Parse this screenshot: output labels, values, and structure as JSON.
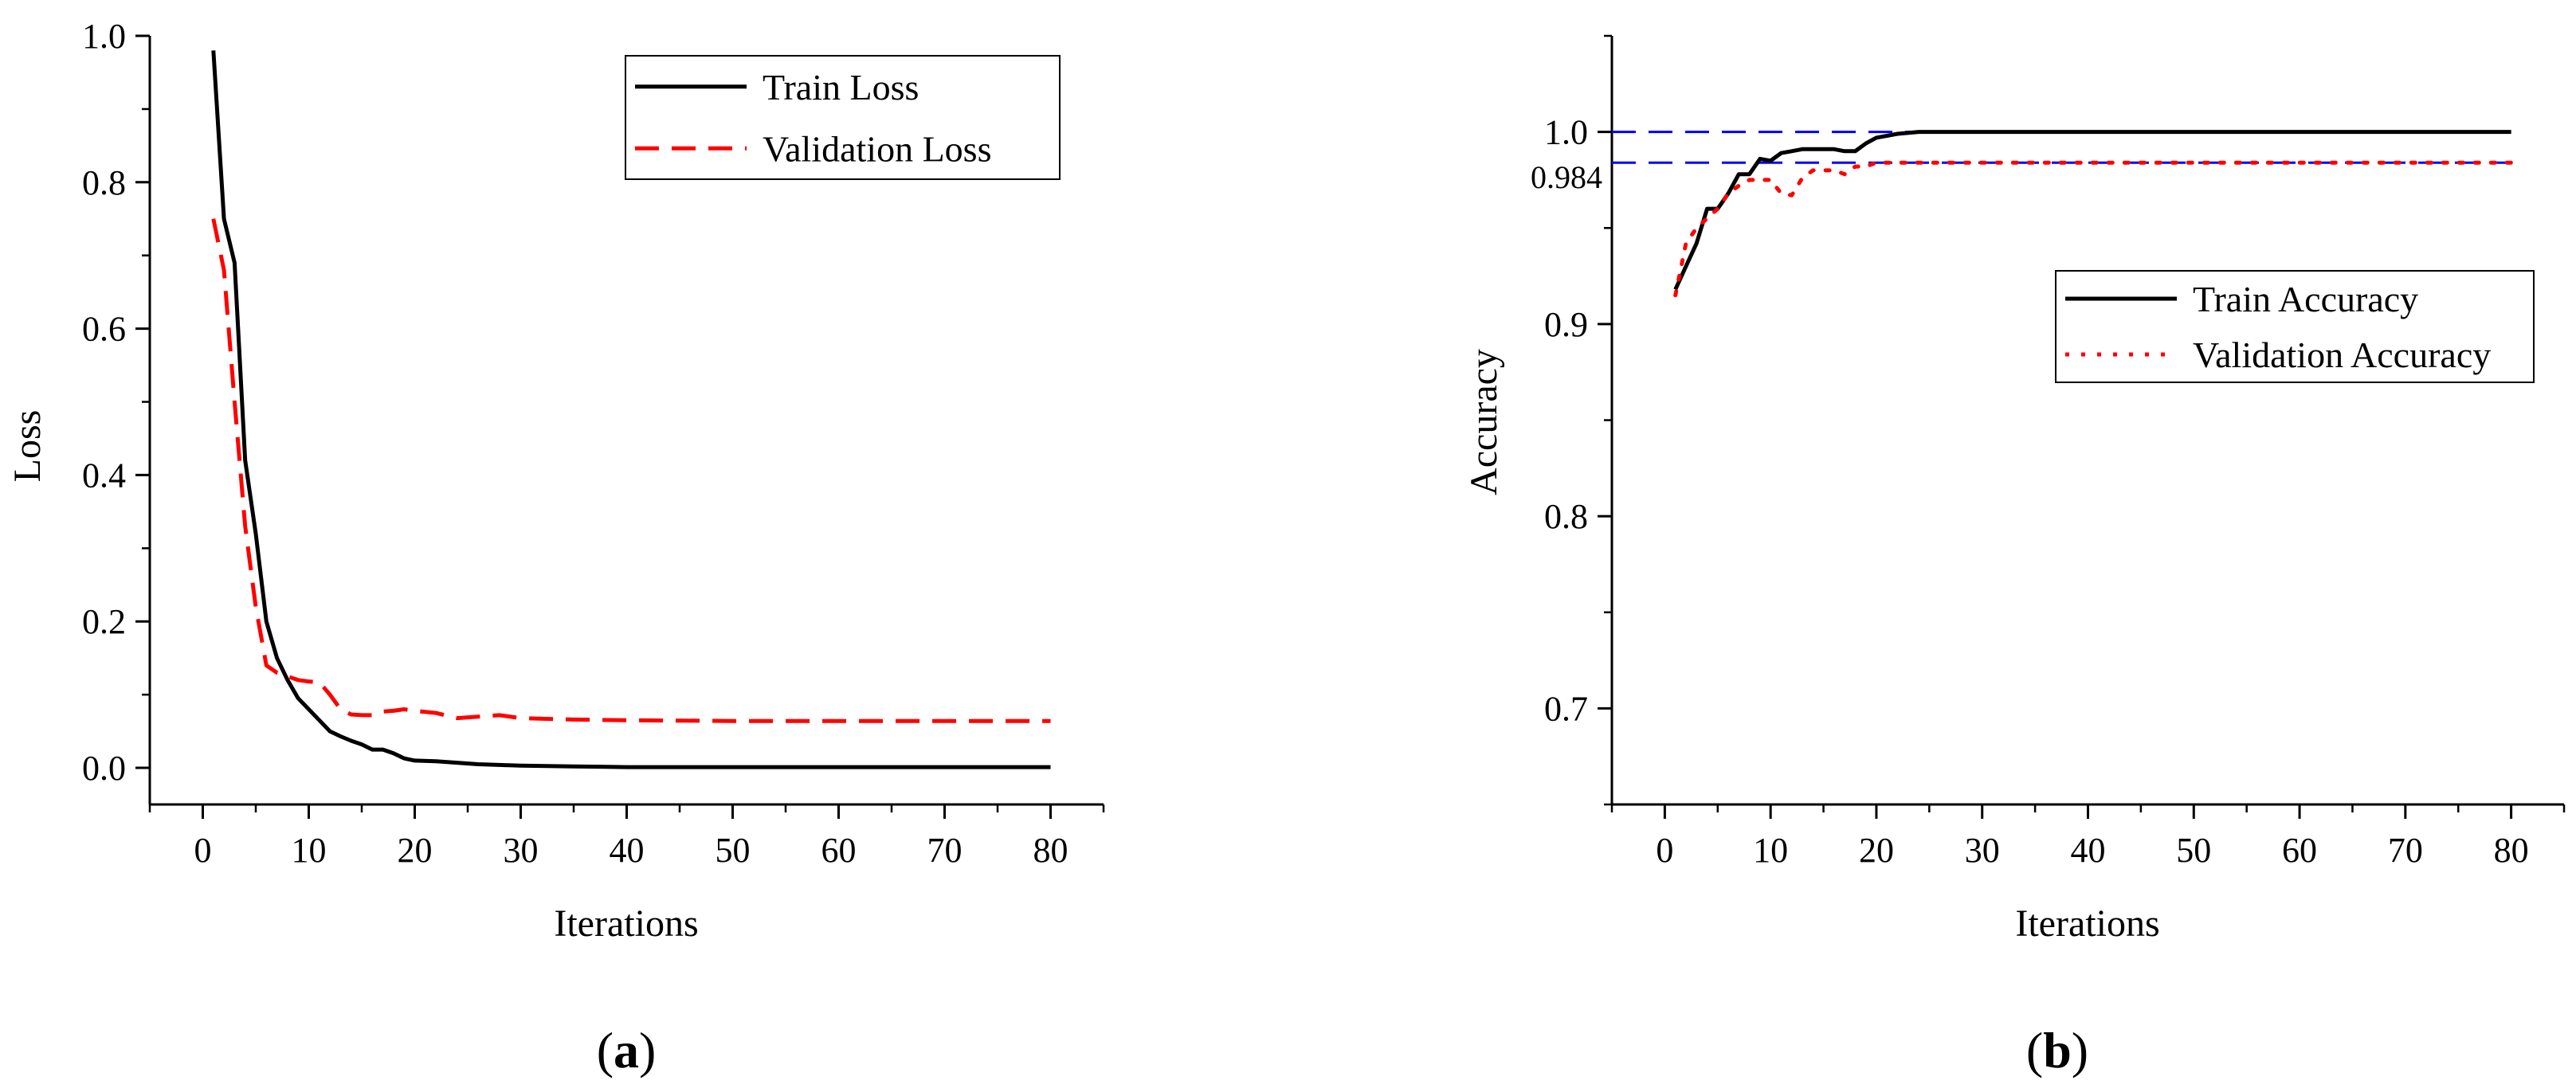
{
  "chart_data": [
    {
      "id": "a",
      "type": "line",
      "panel_label": "a",
      "title": "",
      "xlabel": "Iterations",
      "ylabel": "Loss",
      "xlim": [
        -5,
        85
      ],
      "ylim": [
        -0.05,
        1.0
      ],
      "xticks": [
        0,
        10,
        20,
        30,
        40,
        50,
        60,
        70,
        80
      ],
      "yticks": [
        0.0,
        0.2,
        0.4,
        0.6,
        0.8,
        1.0
      ],
      "ytick_format": 1,
      "grid": false,
      "legend_position": "top-right",
      "series": [
        {
          "name": "Train Loss",
          "color": "#000000",
          "style": "solid",
          "x": [
            1,
            2,
            3,
            4,
            5,
            6,
            7,
            8,
            9,
            10,
            11,
            12,
            13,
            14,
            15,
            16,
            17,
            18,
            19,
            20,
            22,
            24,
            26,
            28,
            30,
            35,
            40,
            50,
            60,
            70,
            80
          ],
          "y": [
            0.98,
            0.75,
            0.69,
            0.42,
            0.32,
            0.2,
            0.15,
            0.12,
            0.095,
            0.08,
            0.065,
            0.05,
            0.043,
            0.037,
            0.032,
            0.025,
            0.025,
            0.02,
            0.013,
            0.01,
            0.009,
            0.007,
            0.005,
            0.004,
            0.003,
            0.002,
            0.001,
            0.001,
            0.001,
            0.001,
            0.001
          ]
        },
        {
          "name": "Validation Loss",
          "color": "#ff0000",
          "style": "dashed",
          "x": [
            1,
            2,
            3,
            4,
            5,
            6,
            7,
            8,
            9,
            10,
            11,
            12,
            13,
            14,
            15,
            16,
            17,
            18,
            19,
            20,
            22,
            24,
            26,
            28,
            30,
            35,
            40,
            50,
            60,
            70,
            80
          ],
          "y": [
            0.75,
            0.68,
            0.5,
            0.33,
            0.22,
            0.14,
            0.13,
            0.125,
            0.12,
            0.118,
            0.117,
            0.1,
            0.08,
            0.073,
            0.072,
            0.072,
            0.077,
            0.078,
            0.08,
            0.078,
            0.075,
            0.068,
            0.07,
            0.072,
            0.068,
            0.066,
            0.065,
            0.064,
            0.064,
            0.064,
            0.064
          ]
        }
      ]
    },
    {
      "id": "b",
      "type": "line",
      "panel_label": "b",
      "title": "",
      "xlabel": "Iterations",
      "ylabel": "Accuracy",
      "xlim": [
        -5,
        85
      ],
      "ylim": [
        0.65,
        1.05
      ],
      "xticks": [
        0,
        10,
        20,
        30,
        40,
        50,
        60,
        70,
        80
      ],
      "yticks": [
        0.7,
        0.8,
        0.9,
        1.0
      ],
      "ytick_format": 1,
      "grid": false,
      "legend_position": "center-right",
      "reference_lines": [
        {
          "y": 1.0,
          "color": "#0000ff",
          "style": "dashed"
        },
        {
          "y": 0.984,
          "color": "#0000ff",
          "style": "dashed",
          "label": "0.984"
        }
      ],
      "series": [
        {
          "name": "Train Accuracy",
          "color": "#000000",
          "style": "solid",
          "x": [
            1,
            2,
            3,
            4,
            5,
            6,
            7,
            8,
            9,
            10,
            11,
            12,
            13,
            14,
            15,
            16,
            17,
            18,
            19,
            20,
            22,
            24,
            30,
            40,
            50,
            60,
            70,
            80
          ],
          "y": [
            0.918,
            0.93,
            0.942,
            0.96,
            0.96,
            0.968,
            0.978,
            0.978,
            0.986,
            0.985,
            0.989,
            0.99,
            0.991,
            0.991,
            0.991,
            0.991,
            0.99,
            0.99,
            0.994,
            0.997,
            0.999,
            1.0,
            1.0,
            1.0,
            1.0,
            1.0,
            1.0,
            1.0
          ]
        },
        {
          "name": "Validation Accuracy",
          "color": "#ff0000",
          "style": "dotted",
          "x": [
            1,
            2,
            3,
            4,
            5,
            6,
            7,
            8,
            9,
            10,
            11,
            12,
            13,
            14,
            15,
            16,
            17,
            18,
            19,
            20,
            22,
            24,
            30,
            40,
            50,
            60,
            70,
            80
          ],
          "y": [
            0.915,
            0.942,
            0.95,
            0.955,
            0.96,
            0.968,
            0.972,
            0.975,
            0.975,
            0.975,
            0.968,
            0.967,
            0.976,
            0.98,
            0.98,
            0.98,
            0.978,
            0.982,
            0.982,
            0.984,
            0.984,
            0.984,
            0.984,
            0.984,
            0.984,
            0.984,
            0.984,
            0.984
          ]
        }
      ]
    }
  ]
}
